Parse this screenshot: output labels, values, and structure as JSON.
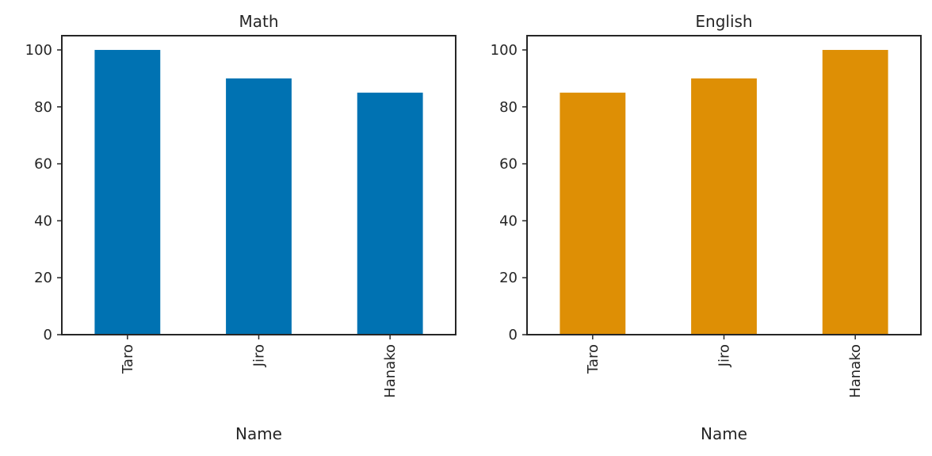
{
  "chart_data": [
    {
      "type": "bar",
      "title": "Math",
      "categories": [
        "Taro",
        "Jiro",
        "Hanako"
      ],
      "values": [
        100,
        90,
        85
      ],
      "xlabel": "Name",
      "ylabel": "",
      "ylim": [
        0,
        105
      ],
      "yticks": [
        "0",
        "20",
        "40",
        "60",
        "80",
        "100"
      ],
      "color": "#0072b2",
      "grid": false
    },
    {
      "type": "bar",
      "title": "English",
      "categories": [
        "Taro",
        "Jiro",
        "Hanako"
      ],
      "values": [
        85,
        90,
        100
      ],
      "xlabel": "Name",
      "ylabel": "",
      "ylim": [
        0,
        105
      ],
      "yticks": [
        "0",
        "20",
        "40",
        "60",
        "80",
        "100"
      ],
      "color": "#de8f05",
      "grid": false
    }
  ]
}
